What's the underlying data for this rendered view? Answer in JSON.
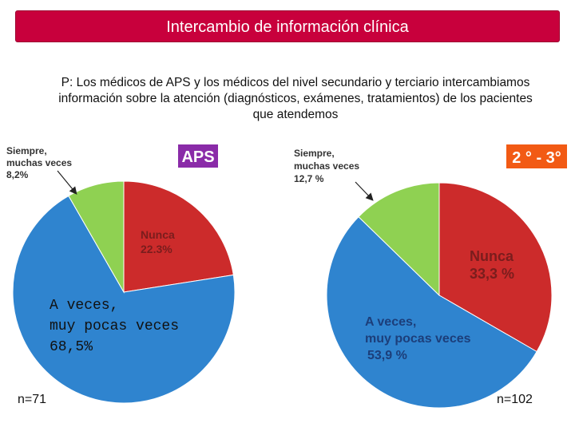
{
  "header": {
    "title": "Intercambio de información clínica",
    "question": "P: Los médicos de APS y los médicos del nivel secundario y terciario intercambiamos información sobre la atención (diagnósticos, exámenes, tratamientos) de los pacientes que atendemos"
  },
  "colors": {
    "banner": "#c8003c",
    "nunca": "#cc2b2b",
    "a_veces": "#2f84cf",
    "siempre": "#8fd152",
    "aps_badge": "#8a2ba8",
    "sec_badge": "#f25a14"
  },
  "chart_data": [
    {
      "type": "pie",
      "badge": "APS",
      "n_label": "n=71",
      "slices": [
        {
          "name": "Nunca",
          "value": 22.3,
          "label_name": "Nunca",
          "label_value": "22.3%",
          "color": "#cc2b2b"
        },
        {
          "name": "A veces, muy pocas veces",
          "value": 68.5,
          "label_lines": [
            "A veces,",
            "muy pocas veces",
            "68,5%"
          ],
          "color": "#2f84cf"
        },
        {
          "name": "Siempre, muchas veces",
          "value": 8.2,
          "label_lines": [
            "Siempre,",
            "muchas veces",
            "8,2%"
          ],
          "color": "#8fd152"
        }
      ]
    },
    {
      "type": "pie",
      "badge": "2 ° - 3°",
      "n_label": "n=102",
      "slices": [
        {
          "name": "Nunca",
          "value": 33.3,
          "label_name": "Nunca",
          "label_value": "33,3 %",
          "color": "#cc2b2b"
        },
        {
          "name": "A veces, muy pocas veces",
          "value": 53.9,
          "label_lines": [
            "A veces,",
            "muy pocas veces",
            "53,9 %"
          ],
          "color": "#2f84cf"
        },
        {
          "name": "Siempre, muchas veces",
          "value": 12.7,
          "label_lines": [
            "Siempre,",
            "muchas veces",
            "12,7 %"
          ],
          "color": "#8fd152"
        }
      ]
    }
  ]
}
